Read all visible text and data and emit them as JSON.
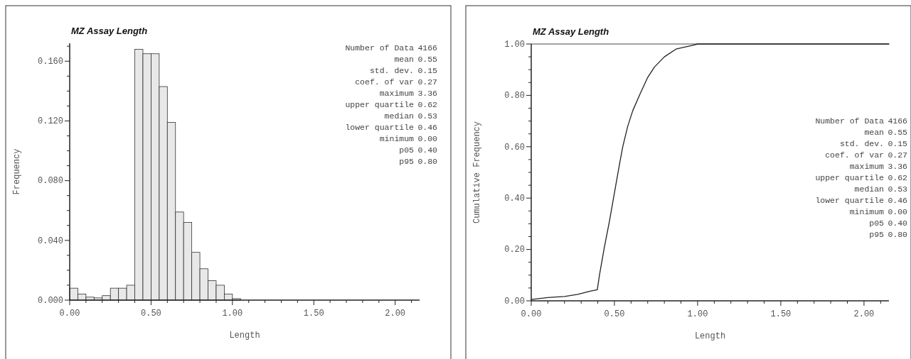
{
  "chart_data": [
    {
      "type": "histogram",
      "title": "MZ Assay Length",
      "xlabel": "Length",
      "ylabel": "Frequency",
      "color": "#e8e8e8",
      "bins": [
        0,
        0.05,
        0.1,
        0.15,
        0.2,
        0.25,
        0.3,
        0.35,
        0.4,
        0.45,
        0.5,
        0.55,
        0.6,
        0.65,
        0.7,
        0.75,
        0.8,
        0.85,
        0.9,
        0.95,
        1.0,
        1.05
      ],
      "values": [
        0.008,
        0.004,
        0.002,
        0.0015,
        0.003,
        0.008,
        0.008,
        0.01,
        0.168,
        0.165,
        0.165,
        0.143,
        0.119,
        0.059,
        0.052,
        0.032,
        0.021,
        0.013,
        0.01,
        0.004,
        0.001
      ],
      "xlim": [
        0,
        2.15
      ],
      "ylim": [
        0,
        0.172
      ],
      "xticks": [
        {
          "value": 0,
          "label": "0.00"
        },
        {
          "value": 0.1,
          "label": null
        },
        {
          "value": 0.2,
          "label": null
        },
        {
          "value": 0.3,
          "label": null
        },
        {
          "value": 0.4,
          "label": null
        },
        {
          "value": 0.5,
          "label": "0.50"
        },
        {
          "value": 0.6,
          "label": null
        },
        {
          "value": 0.7,
          "label": null
        },
        {
          "value": 0.8,
          "label": null
        },
        {
          "value": 0.9,
          "label": null
        },
        {
          "value": 1,
          "label": "1.00"
        },
        {
          "value": 1.1,
          "label": null
        },
        {
          "value": 1.2,
          "label": null
        },
        {
          "value": 1.3,
          "label": null
        },
        {
          "value": 1.4,
          "label": null
        },
        {
          "value": 1.5,
          "label": "1.50"
        },
        {
          "value": 1.6,
          "label": null
        },
        {
          "value": 1.7,
          "label": null
        },
        {
          "value": 1.8,
          "label": null
        },
        {
          "value": 1.9,
          "label": null
        },
        {
          "value": 2,
          "label": "2.00"
        },
        {
          "value": 2.1,
          "label": null
        }
      ],
      "yticks": [
        {
          "value": 0,
          "label": "0.000"
        },
        {
          "value": 0.01,
          "label": null
        },
        {
          "value": 0.02,
          "label": null
        },
        {
          "value": 0.03,
          "label": null
        },
        {
          "value": 0.04,
          "label": "0.040"
        },
        {
          "value": 0.05,
          "label": null
        },
        {
          "value": 0.06,
          "label": null
        },
        {
          "value": 0.07,
          "label": null
        },
        {
          "value": 0.08,
          "label": "0.080"
        },
        {
          "value": 0.09,
          "label": null
        },
        {
          "value": 0.1,
          "label": null
        },
        {
          "value": 0.11,
          "label": null
        },
        {
          "value": 0.12,
          "label": "0.120"
        },
        {
          "value": 0.13,
          "label": null
        },
        {
          "value": 0.14,
          "label": null
        },
        {
          "value": 0.15,
          "label": null
        },
        {
          "value": 0.16,
          "label": "0.160"
        },
        {
          "value": 0.17,
          "label": null
        }
      ],
      "annotations": [
        "Number of Data 4166",
        "mean 0.55",
        "std. dev. 0.15",
        "coef. of var 0.27",
        "maximum 3.36",
        "upper quartile 0.62",
        "median 0.53",
        "lower quartile 0.46",
        "minimum 0.00",
        "p05 0.40",
        "p95 0.80"
      ]
    },
    {
      "type": "line",
      "title": "MZ Assay Length",
      "xlabel": "Length",
      "ylabel": "Cumulative Frequency",
      "color": "#222222",
      "x": [
        0,
        0.1,
        0.2,
        0.28,
        0.35,
        0.397,
        0.41,
        0.44,
        0.47,
        0.5,
        0.53,
        0.55,
        0.58,
        0.61,
        0.65,
        0.7,
        0.74,
        0.8,
        0.87,
        0.97,
        1.0,
        2.15
      ],
      "values": [
        0.005,
        0.013,
        0.017,
        0.025,
        0.037,
        0.043,
        0.1,
        0.21,
        0.31,
        0.42,
        0.53,
        0.6,
        0.68,
        0.74,
        0.8,
        0.87,
        0.91,
        0.95,
        0.98,
        0.995,
        1.0,
        1.0
      ],
      "xlim": [
        0,
        2.15
      ],
      "ylim": [
        0,
        1
      ],
      "xticks": [
        {
          "value": 0,
          "label": "0.00"
        },
        {
          "value": 0.1,
          "label": null
        },
        {
          "value": 0.2,
          "label": null
        },
        {
          "value": 0.3,
          "label": null
        },
        {
          "value": 0.4,
          "label": null
        },
        {
          "value": 0.5,
          "label": "0.50"
        },
        {
          "value": 0.6,
          "label": null
        },
        {
          "value": 0.7,
          "label": null
        },
        {
          "value": 0.8,
          "label": null
        },
        {
          "value": 0.9,
          "label": null
        },
        {
          "value": 1,
          "label": "1.00"
        },
        {
          "value": 1.1,
          "label": null
        },
        {
          "value": 1.2,
          "label": null
        },
        {
          "value": 1.3,
          "label": null
        },
        {
          "value": 1.4,
          "label": null
        },
        {
          "value": 1.5,
          "label": "1.50"
        },
        {
          "value": 1.6,
          "label": null
        },
        {
          "value": 1.7,
          "label": null
        },
        {
          "value": 1.8,
          "label": null
        },
        {
          "value": 1.9,
          "label": null
        },
        {
          "value": 2,
          "label": "2.00"
        },
        {
          "value": 2.1,
          "label": null
        }
      ],
      "yticks": [
        {
          "value": 0,
          "label": "0.00"
        },
        {
          "value": 0.05,
          "label": null
        },
        {
          "value": 0.1,
          "label": null
        },
        {
          "value": 0.15,
          "label": null
        },
        {
          "value": 0.2,
          "label": "0.20"
        },
        {
          "value": 0.25,
          "label": null
        },
        {
          "value": 0.3,
          "label": null
        },
        {
          "value": 0.35,
          "label": null
        },
        {
          "value": 0.4,
          "label": "0.40"
        },
        {
          "value": 0.45,
          "label": null
        },
        {
          "value": 0.5,
          "label": null
        },
        {
          "value": 0.55,
          "label": null
        },
        {
          "value": 0.6,
          "label": "0.60"
        },
        {
          "value": 0.65,
          "label": null
        },
        {
          "value": 0.7,
          "label": null
        },
        {
          "value": 0.75,
          "label": null
        },
        {
          "value": 0.8,
          "label": "0.80"
        },
        {
          "value": 0.85,
          "label": null
        },
        {
          "value": 0.9,
          "label": null
        },
        {
          "value": 0.95,
          "label": null
        },
        {
          "value": 1,
          "label": "1.00"
        }
      ],
      "ref_lines": [
        {
          "axis": "y",
          "value": 1
        }
      ],
      "annotations": [
        "Number of Data 4166",
        "mean 0.55",
        "std. dev. 0.15",
        "coef. of var 0.27",
        "maximum 3.36",
        "upper quartile 0.62",
        "median 0.53",
        "lower quartile 0.46",
        "minimum 0.00",
        "p05 0.40",
        "p95 0.80"
      ]
    }
  ]
}
